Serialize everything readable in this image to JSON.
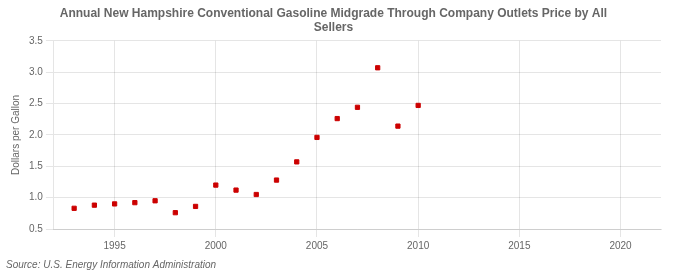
{
  "chart_data": {
    "type": "scatter",
    "title": "Annual New Hampshire Conventional Gasoline Midgrade Through Company Outlets Price by All\nSellers",
    "y_label": "Dollars per Gallon",
    "annotations": [
      "Source: U.S. Energy Information Administration"
    ],
    "x": [
      1993,
      1994,
      1995,
      1996,
      1997,
      1998,
      1999,
      2000,
      2001,
      2002,
      2003,
      2004,
      2005,
      2006,
      2007,
      2008,
      2009,
      2010
    ],
    "values": [
      0.83,
      0.88,
      0.9,
      0.92,
      0.95,
      0.76,
      0.86,
      1.2,
      1.12,
      1.05,
      1.28,
      1.57,
      1.96,
      2.26,
      2.44,
      3.07,
      2.14,
      2.47
    ],
    "color": "#cc0000",
    "marker": "square",
    "xlim": [
      1992,
      2022
    ],
    "ylim": [
      0.5,
      3.5
    ],
    "xticks": [
      1995,
      2000,
      2005,
      2010,
      2015,
      2020
    ],
    "yticks": [
      0.5,
      {
        "value": 1.0,
        "label": "1.0"
      },
      1.5,
      {
        "value": 2.0,
        "label": "2.0"
      },
      2.5,
      {
        "value": 3.0,
        "label": "3.0"
      },
      3.5
    ],
    "grid": true
  }
}
